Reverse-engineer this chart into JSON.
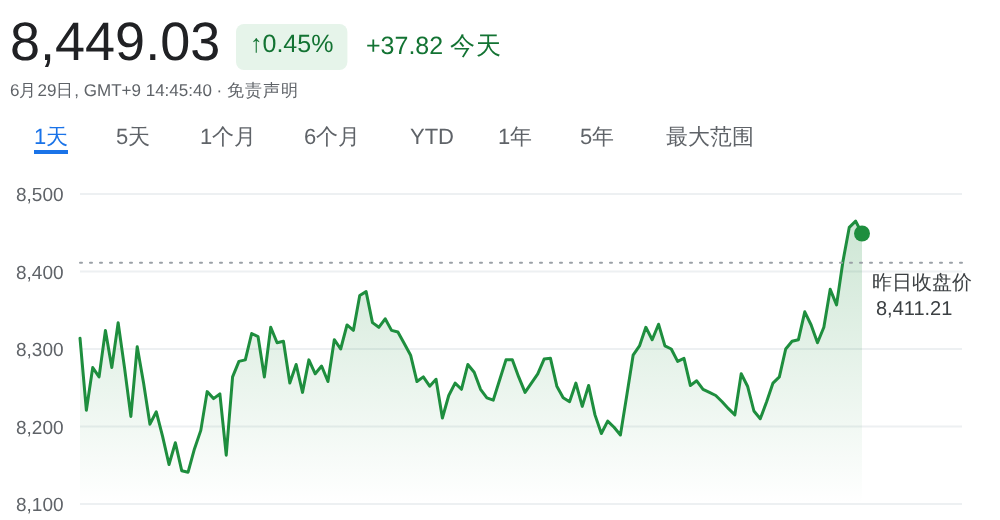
{
  "chart_data": {
    "type": "area",
    "title": "8,449.03",
    "annotations": [
      "↑0.45%",
      "+37.82 今天",
      "6月29日, GMT+9 14:45:40 · 免责声明",
      "1天",
      "5天",
      "1个月",
      "6个月",
      "YTD",
      "1年",
      "5年",
      "最大范围"
    ],
    "categories": [
      null,
      null,
      null,
      null,
      null,
      null,
      null,
      null,
      null,
      null,
      null,
      null,
      null,
      null,
      null,
      null,
      null,
      null,
      null,
      null,
      null,
      null,
      null,
      null,
      null,
      null,
      null,
      null,
      null,
      null,
      null,
      null,
      null,
      null,
      null,
      null,
      null,
      null,
      null,
      null,
      null,
      null,
      null,
      null,
      null,
      null,
      null,
      null,
      null,
      null,
      null,
      null,
      null,
      null,
      null,
      null,
      null,
      null,
      null,
      null,
      null,
      null,
      null,
      null,
      null,
      null,
      null,
      null,
      null,
      null,
      null,
      null,
      null,
      null,
      null,
      null,
      null,
      null,
      null,
      null,
      null,
      null,
      null,
      null,
      null,
      null,
      null,
      null,
      null,
      null,
      null,
      null,
      null,
      null,
      null,
      null,
      null,
      null,
      null,
      null,
      null,
      null,
      null,
      null,
      null,
      null,
      null,
      null,
      null,
      null,
      null,
      null,
      null,
      null,
      null,
      null,
      null,
      null,
      null,
      null,
      null,
      null,
      null,
      null
    ],
    "ylim": [
      8100,
      8500
    ],
    "yticks": [
      {
        "value": 8100,
        "label": "8,100"
      },
      {
        "value": 8200,
        "label": "8,200"
      },
      {
        "value": 8300,
        "label": "8,300"
      },
      {
        "value": 8400,
        "label": "8,400"
      },
      {
        "value": 8500,
        "label": "8,500"
      }
    ],
    "tick_labels": "y",
    "grid": "y",
    "marker": "none",
    "ref_lines": [
      {
        "axis": "y",
        "value": 8411.21,
        "label": "昨日收盘价 8,411.21",
        "color": "#9aa0a6",
        "line_style": "dotted"
      }
    ],
    "series": [
      {
        "color": "#1e8e3e",
        "values": [
          8314,
          8221,
          8276,
          8264,
          8324,
          8276,
          8334,
          8276,
          8213,
          8303,
          8256,
          8203,
          8219,
          8187,
          8151,
          8179,
          8143,
          8141,
          8171,
          8195,
          8245,
          8236,
          8242,
          8163,
          8264,
          8284,
          8286,
          8320,
          8316,
          8264,
          8328,
          8308,
          8310,
          8256,
          8280,
          8244,
          8286,
          8268,
          8278,
          8258,
          8312,
          8300,
          8331,
          8324,
          8369,
          8374,
          8334,
          8328,
          8339,
          8324,
          8322,
          8307,
          8292,
          8258,
          8264,
          8252,
          8261,
          8211,
          8240,
          8256,
          8248,
          8280,
          8270,
          8248,
          8237,
          8234,
          8260,
          8286,
          8286,
          8264,
          8244,
          8256,
          8268,
          8287,
          8288,
          8252,
          8237,
          8232,
          8256,
          8226,
          8253,
          8215,
          8191,
          8207,
          8199,
          8189,
          8240,
          8292,
          8304,
          8328,
          8312,
          8332,
          8304,
          8300,
          8284,
          8288,
          8253,
          8259,
          8248,
          8244,
          8240,
          8232,
          8223,
          8215,
          8268,
          8252,
          8220,
          8210,
          8232,
          8256,
          8264,
          8300,
          8310,
          8312,
          8348,
          8331,
          8308,
          8328,
          8377,
          8357,
          8413,
          8457,
          8465,
          8449
        ]
      }
    ]
  }
}
